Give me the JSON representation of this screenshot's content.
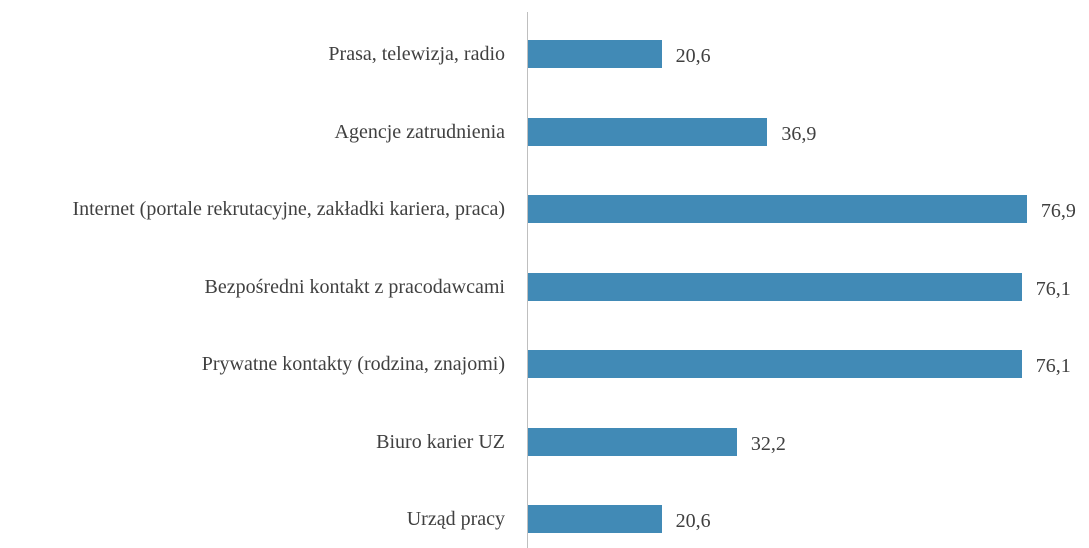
{
  "chart_data": {
    "type": "hbar",
    "categories": [
      "Prasa, telewizja, radio",
      "Agencje zatrudnienia",
      "Internet (portale rekrutacyjne, zakładki kariera, praca)",
      "Bezpośredni kontakt z pracodawcami",
      "Prywatne kontakty (rodzina, znajomi)",
      "Biuro karier UZ",
      "Urząd pracy"
    ],
    "values": [
      20.6,
      36.9,
      76.9,
      76.1,
      76.1,
      32.2,
      20.6
    ],
    "value_labels": [
      "20,6",
      "36,9",
      "76,9",
      "76,1",
      "76,1",
      "32,2",
      "20,6"
    ],
    "color": "#418ab6",
    "xlim": [
      0,
      80
    ]
  }
}
